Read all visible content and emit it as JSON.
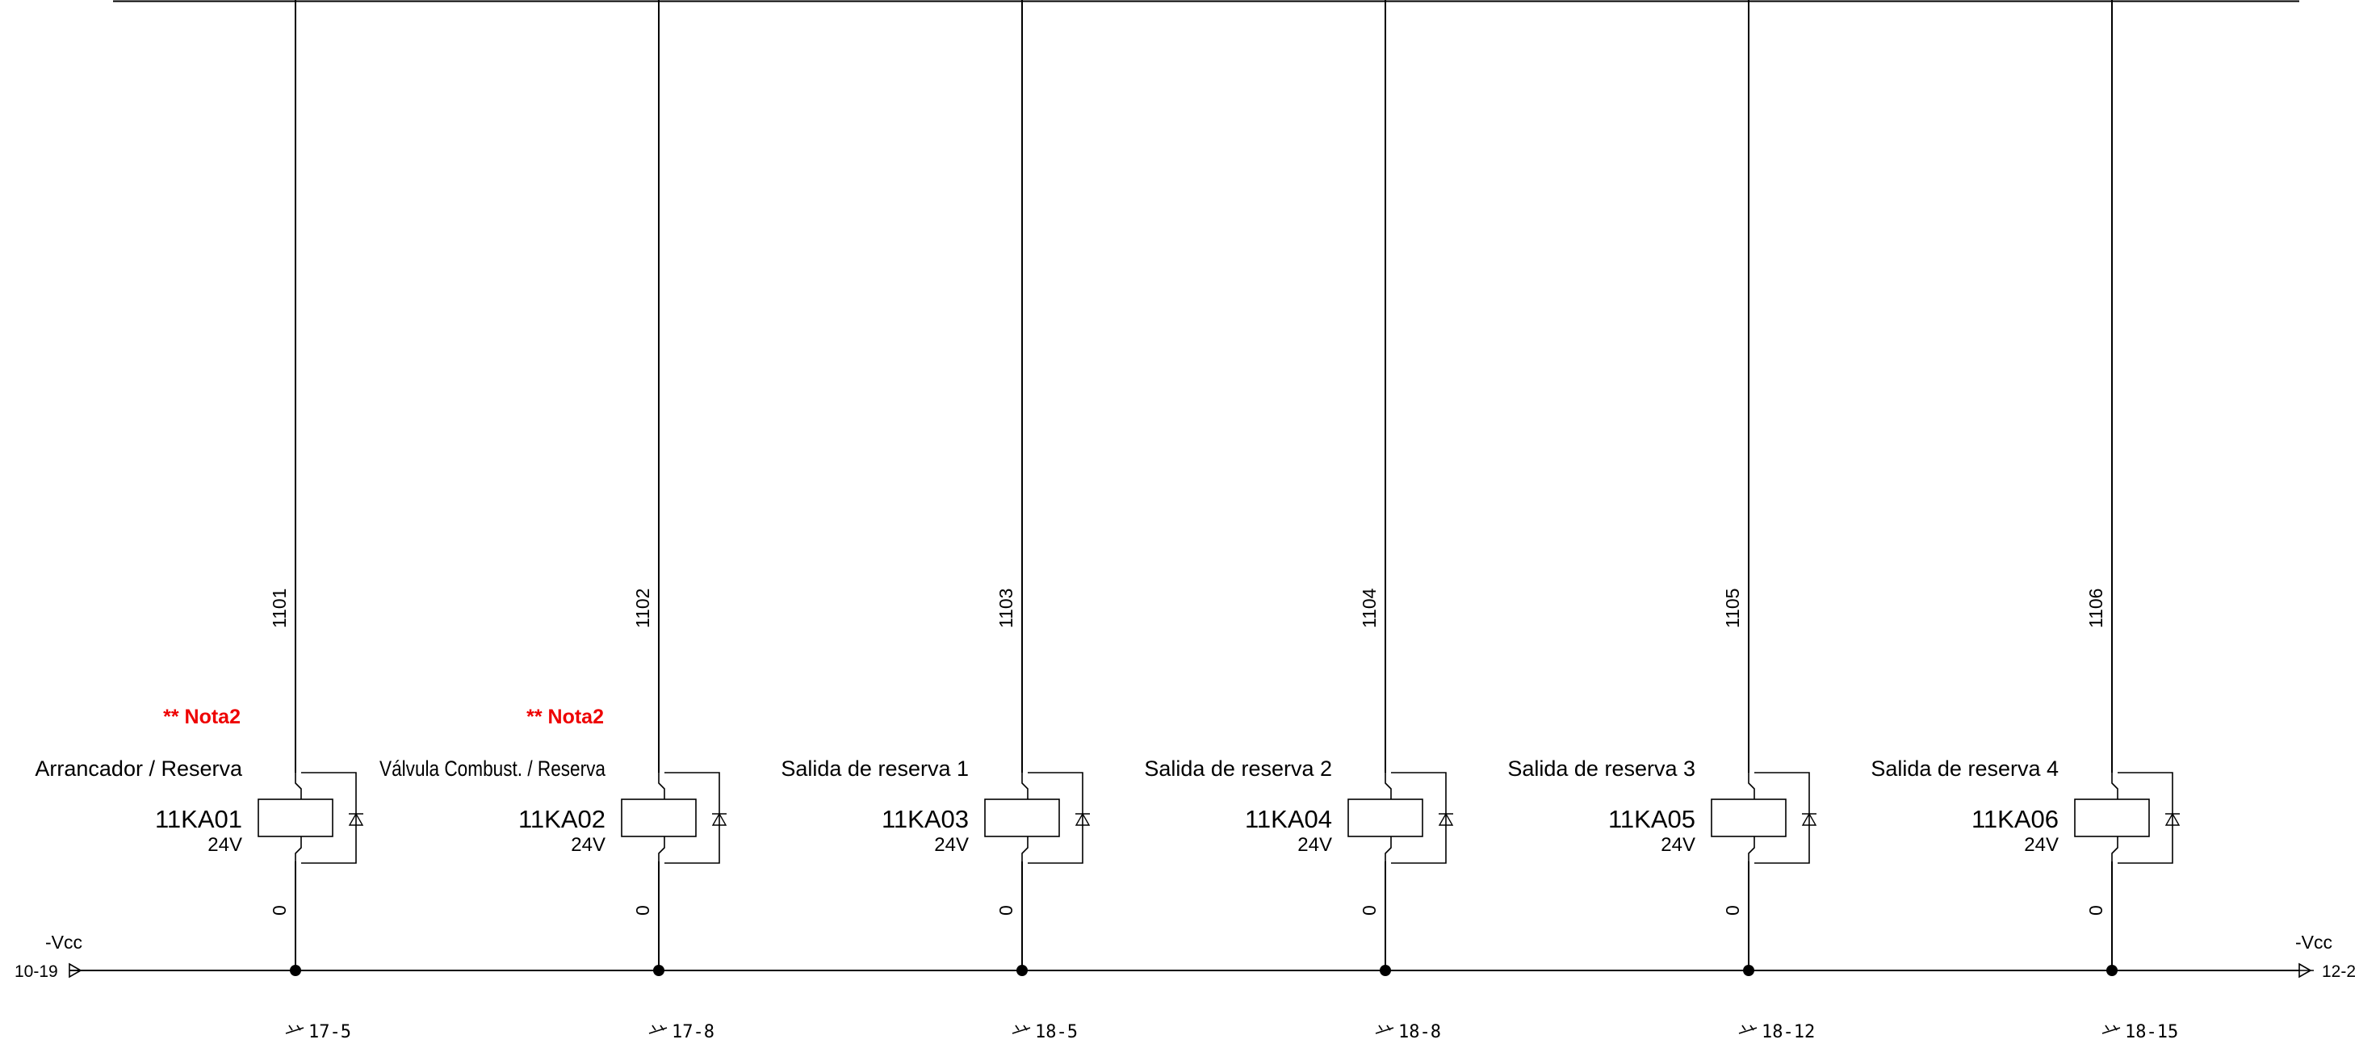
{
  "supply": {
    "left_label": "-Vcc",
    "left_ref": "10-19",
    "right_label": "-Vcc",
    "right_ref": "12-2"
  },
  "circuits": [
    {
      "wire": "1101",
      "note": "** Nota2",
      "description": "Arrancador / Reserva",
      "tag": "11KA01",
      "voltage": "24V",
      "return_wire": "0",
      "contact_ref": "17-5"
    },
    {
      "wire": "1102",
      "note": "** Nota2",
      "description": "Válvula Combust. / Reserva",
      "tag": "11KA02",
      "voltage": "24V",
      "return_wire": "0",
      "contact_ref": "17-8"
    },
    {
      "wire": "1103",
      "note": "",
      "description": "Salida de reserva 1",
      "tag": "11KA03",
      "voltage": "24V",
      "return_wire": "0",
      "contact_ref": "18-5"
    },
    {
      "wire": "1104",
      "note": "",
      "description": "Salida de reserva 2",
      "tag": "11KA04",
      "voltage": "24V",
      "return_wire": "0",
      "contact_ref": "18-8"
    },
    {
      "wire": "1105",
      "note": "",
      "description": "Salida de reserva 3",
      "tag": "11KA05",
      "voltage": "24V",
      "return_wire": "0",
      "contact_ref": "18-12"
    },
    {
      "wire": "1106",
      "note": "",
      "description": "Salida de reserva 4",
      "tag": "11KA06",
      "voltage": "24V",
      "return_wire": "0",
      "contact_ref": "18-15"
    }
  ],
  "colors": {
    "line": "#000000",
    "note": "#ee0000",
    "background": "#ffffff"
  }
}
